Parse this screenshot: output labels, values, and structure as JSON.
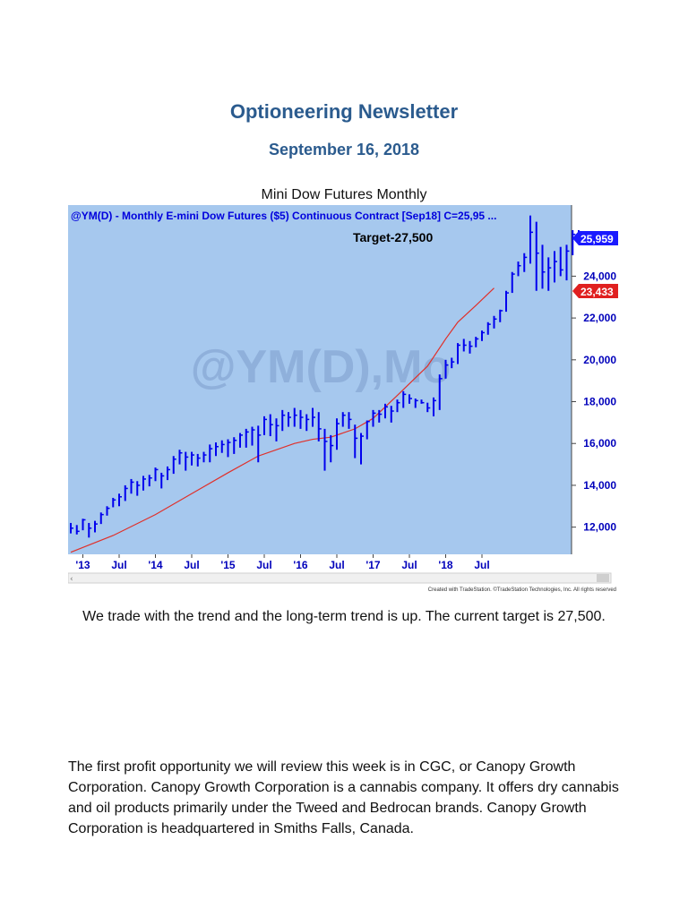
{
  "newsletter": {
    "title": "Optioneering Newsletter",
    "date": "September 16, 2018"
  },
  "chart_caption": "Mini Dow Futures Monthly",
  "chart_data": {
    "type": "ohlc",
    "header": "@YM(D) - Monthly  E-mini Dow Futures ($5) Continuous Contract [Sep18]  C=25,95 ...",
    "watermark": "@YM(D),Mo",
    "annotation": "Target-27,500",
    "price_tag": "25,959",
    "ma_tag": "23,433",
    "credit": "Created with TradeStation. ©TradeStation Technologies, Inc. All rights reserved",
    "y_ticks": [
      12000,
      14000,
      16000,
      18000,
      20000,
      22000,
      24000
    ],
    "y_tick_labels": [
      "12,000",
      "14,000",
      "16,000",
      "18,000",
      "20,000",
      "22,000",
      "24,000"
    ],
    "ylim": [
      10700,
      27400
    ],
    "x_tick_labels": [
      {
        "label": "'13",
        "month": "2013-01"
      },
      {
        "label": "Jul",
        "month": "2013-07"
      },
      {
        "label": "'14",
        "month": "2014-01"
      },
      {
        "label": "Jul",
        "month": "2014-07"
      },
      {
        "label": "'15",
        "month": "2015-01"
      },
      {
        "label": "Jul",
        "month": "2015-07"
      },
      {
        "label": "'16",
        "month": "2016-01"
      },
      {
        "label": "Jul",
        "month": "2016-07"
      },
      {
        "label": "'17",
        "month": "2017-01"
      },
      {
        "label": "Jul",
        "month": "2017-07"
      },
      {
        "label": "'18",
        "month": "2018-01"
      },
      {
        "label": "Jul",
        "month": "2018-07"
      }
    ],
    "first_month": "2012-11",
    "bars_hlc": [
      [
        12200,
        11700,
        11950
      ],
      [
        12100,
        11650,
        11800
      ],
      [
        12400,
        11850,
        12350
      ],
      [
        12200,
        11500,
        11950
      ],
      [
        12300,
        11750,
        12150
      ],
      [
        12700,
        12150,
        12600
      ],
      [
        13000,
        12550,
        12900
      ],
      [
        13400,
        12950,
        13300
      ],
      [
        13600,
        13000,
        13450
      ],
      [
        14000,
        13250,
        13850
      ],
      [
        14300,
        13600,
        14150
      ],
      [
        14200,
        13500,
        14000
      ],
      [
        14450,
        13750,
        14300
      ],
      [
        14500,
        13950,
        14350
      ],
      [
        14850,
        14200,
        14750
      ],
      [
        14600,
        13850,
        14450
      ],
      [
        14900,
        14250,
        14750
      ],
      [
        15400,
        14550,
        15250
      ],
      [
        15700,
        15000,
        15550
      ],
      [
        15600,
        14700,
        15350
      ],
      [
        15600,
        14950,
        15450
      ],
      [
        15500,
        14900,
        15300
      ],
      [
        15600,
        15100,
        15450
      ],
      [
        15950,
        15100,
        15750
      ],
      [
        16050,
        15400,
        15850
      ],
      [
        16150,
        15550,
        15950
      ],
      [
        16200,
        15350,
        16050
      ],
      [
        16300,
        15500,
        16150
      ],
      [
        16500,
        15800,
        16400
      ],
      [
        16700,
        15800,
        16550
      ],
      [
        16800,
        15900,
        16650
      ],
      [
        16850,
        15100,
        16400
      ],
      [
        17300,
        16400,
        17150
      ],
      [
        17400,
        16350,
        16900
      ],
      [
        17200,
        16100,
        16850
      ],
      [
        17600,
        16600,
        17350
      ],
      [
        17500,
        16800,
        17250
      ],
      [
        17700,
        16800,
        17350
      ],
      [
        17600,
        16700,
        17250
      ],
      [
        17400,
        16600,
        17150
      ],
      [
        17700,
        16800,
        17250
      ],
      [
        17500,
        16100,
        16700
      ],
      [
        16700,
        14700,
        16100
      ],
      [
        16400,
        15100,
        15900
      ],
      [
        17200,
        15700,
        16950
      ],
      [
        17500,
        16800,
        17350
      ],
      [
        17500,
        16700,
        17150
      ],
      [
        16900,
        15300,
        16250
      ],
      [
        16500,
        15000,
        16350
      ],
      [
        17100,
        16200,
        17050
      ],
      [
        17600,
        16800,
        17450
      ],
      [
        17600,
        17000,
        17400
      ],
      [
        17900,
        17200,
        17750
      ],
      [
        17800,
        17000,
        17550
      ],
      [
        18100,
        17500,
        17950
      ],
      [
        18500,
        17700,
        18350
      ],
      [
        18350,
        17900,
        18150
      ],
      [
        18150,
        17700,
        18050
      ],
      [
        18100,
        17900,
        17950
      ],
      [
        17950,
        17500,
        17700
      ],
      [
        18200,
        17300,
        18050
      ],
      [
        19300,
        17600,
        19100
      ],
      [
        20000,
        19100,
        19750
      ],
      [
        20100,
        19600,
        19900
      ],
      [
        20800,
        19800,
        20700
      ],
      [
        21000,
        20400,
        20700
      ],
      [
        20900,
        20300,
        20650
      ],
      [
        21100,
        20600,
        21000
      ],
      [
        21400,
        20900,
        21300
      ],
      [
        21800,
        21200,
        21700
      ],
      [
        22100,
        21500,
        21950
      ],
      [
        22400,
        21800,
        22350
      ],
      [
        23300,
        22300,
        23200
      ],
      [
        24200,
        23200,
        24100
      ],
      [
        24700,
        24000,
        24500
      ],
      [
        25100,
        24200,
        24900
      ],
      [
        26900,
        24600,
        26100
      ],
      [
        26600,
        23300,
        25100
      ],
      [
        25500,
        23400,
        24200
      ],
      [
        24900,
        23300,
        24400
      ],
      [
        25200,
        23700,
        24700
      ],
      [
        25400,
        24000,
        24300
      ],
      [
        25500,
        23800,
        25200
      ],
      [
        26200,
        25000,
        26000
      ],
      [
        26200,
        25700,
        25959
      ]
    ],
    "moving_average_points": [
      [
        "2012-11",
        10800
      ],
      [
        "2013-06",
        11600
      ],
      [
        "2014-01",
        12600
      ],
      [
        "2014-07",
        13600
      ],
      [
        "2015-01",
        14600
      ],
      [
        "2015-06",
        15400
      ],
      [
        "2015-12",
        16000
      ],
      [
        "2016-03",
        16200
      ],
      [
        "2016-06",
        16300
      ],
      [
        "2016-10",
        16700
      ],
      [
        "2017-01",
        17200
      ],
      [
        "2017-05",
        18300
      ],
      [
        "2017-10",
        19700
      ],
      [
        "2018-01",
        21000
      ],
      [
        "2018-03",
        21800
      ],
      [
        "2018-06",
        22600
      ],
      [
        "2018-09",
        23433
      ]
    ],
    "colors": {
      "background": "#a6c8ee",
      "bars": "#0000ee",
      "moving_average": "#e0302a",
      "header_text": "#0000dd",
      "watermark": "#8fb0db",
      "price_tag_bg": "#1a1aff",
      "ma_tag_bg": "#e02020"
    }
  },
  "paragraphs": {
    "trend": "We trade with the trend and the long-term trend is up. The current target is 27,500.",
    "cgc": "The first profit opportunity we will review this week is in CGC, or Canopy Growth Corporation. Canopy Growth Corporation is a cannabis company. It offers dry cannabis and oil products primarily under the Tweed and Bedrocan brands. Canopy Growth Corporation is headquartered in Smiths Falls, Canada."
  }
}
